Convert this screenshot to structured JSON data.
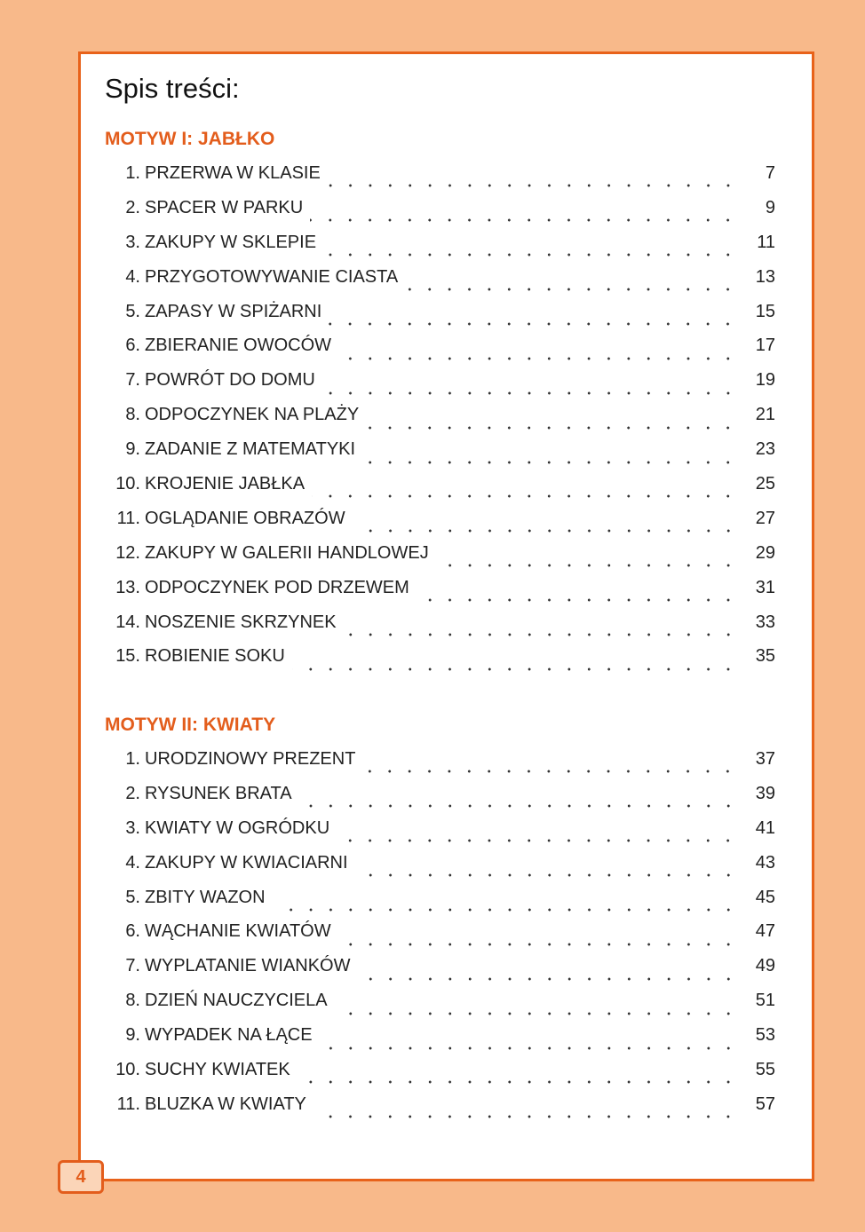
{
  "title": "Spis treści:",
  "sections": [
    {
      "heading": "MOTYW I: JABŁKO",
      "items": [
        {
          "num": "1.",
          "label": "PRZERWA W KLASIE",
          "page": "7"
        },
        {
          "num": "2.",
          "label": "SPACER W PARKU",
          "page": "9"
        },
        {
          "num": "3.",
          "label": "ZAKUPY W SKLEPIE",
          "page": "11"
        },
        {
          "num": "4.",
          "label": "PRZYGOTOWYWANIE CIASTA",
          "page": "13"
        },
        {
          "num": "5.",
          "label": "ZAPASY W SPIŻARNI",
          "page": "15"
        },
        {
          "num": "6.",
          "label": "ZBIERANIE OWOCÓW",
          "page": "17"
        },
        {
          "num": "7.",
          "label": "POWRÓT DO DOMU",
          "page": "19"
        },
        {
          "num": "8.",
          "label": "ODPOCZYNEK NA PLAŻY",
          "page": "21"
        },
        {
          "num": "9.",
          "label": "ZADANIE Z MATEMATYKI",
          "page": "23"
        },
        {
          "num": "10.",
          "label": "KROJENIE JABŁKA",
          "page": "25"
        },
        {
          "num": "11.",
          "label": "OGLĄDANIE OBRAZÓW",
          "page": "27"
        },
        {
          "num": "12.",
          "label": "ZAKUPY W GALERII HANDLOWEJ",
          "page": "29"
        },
        {
          "num": "13.",
          "label": "ODPOCZYNEK POD DRZEWEM",
          "page": "31"
        },
        {
          "num": "14.",
          "label": "NOSZENIE SKRZYNEK",
          "page": "33"
        },
        {
          "num": "15.",
          "label": "ROBIENIE SOKU",
          "page": "35"
        }
      ]
    },
    {
      "heading": "MOTYW II: KWIATY",
      "items": [
        {
          "num": "1.",
          "label": "URODZINOWY PREZENT",
          "page": "37"
        },
        {
          "num": "2.",
          "label": "RYSUNEK BRATA",
          "page": "39"
        },
        {
          "num": "3.",
          "label": "KWIATY W OGRÓDKU",
          "page": "41"
        },
        {
          "num": "4.",
          "label": "ZAKUPY W KWIACIARNI",
          "page": "43"
        },
        {
          "num": "5.",
          "label": "ZBITY WAZON",
          "page": "45"
        },
        {
          "num": "6.",
          "label": "WĄCHANIE KWIATÓW",
          "page": "47"
        },
        {
          "num": "7.",
          "label": "WYPLATANIE WIANKÓW",
          "page": "49"
        },
        {
          "num": "8.",
          "label": "DZIEŃ NAUCZYCIELA",
          "page": "51"
        },
        {
          "num": "9.",
          "label": "WYPADEK NA ŁĄCE",
          "page": "53"
        },
        {
          "num": "10.",
          "label": "SUCHY KWIATEK",
          "page": "55"
        },
        {
          "num": "11.",
          "label": "BLUZKA W KWIATY",
          "page": "57"
        }
      ]
    }
  ],
  "page_number": "4",
  "colors": {
    "accent": "#e35d1c",
    "background": "#f8b98a"
  }
}
